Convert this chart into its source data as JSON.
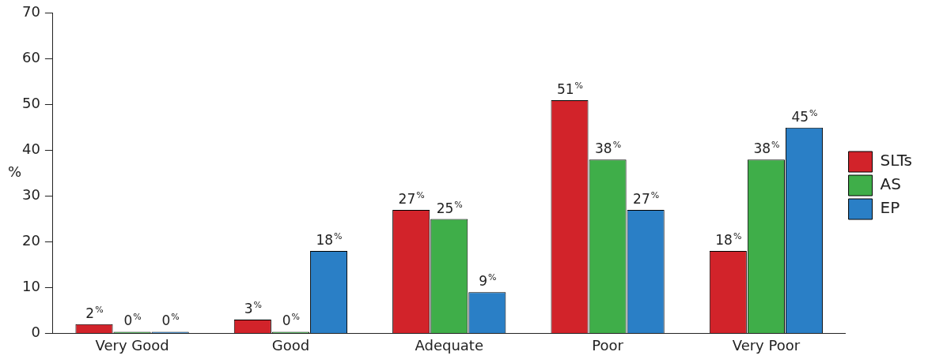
{
  "chart_data": {
    "type": "bar",
    "ylabel": "%",
    "categories": [
      "Very Good",
      "Good",
      "Adequate",
      "Poor",
      "Very Poor"
    ],
    "series": [
      {
        "name": "SLTs",
        "color": "#d2232a",
        "values": [
          2,
          3,
          27,
          51,
          18
        ],
        "value_labels": [
          "2$^{%}$",
          "3$^{%}$",
          "27$^{%}$",
          "51$^{%}$",
          "18$^{%}$"
        ]
      },
      {
        "name": "AS",
        "color": "#3fae49",
        "values": [
          0,
          0,
          25,
          38,
          38
        ],
        "value_labels": [
          "0$^{%}$",
          "0$^{%}$",
          "25$^{%}$",
          "38$^{%}$",
          "38$^{%}$"
        ]
      },
      {
        "name": "EP",
        "color": "#2a7fc6",
        "values": [
          0,
          18,
          9,
          27,
          45
        ],
        "value_labels": [
          "0$^{%}$",
          "18$^{%}$",
          "9$^{%}$",
          "27$^{%}$",
          "45$^{%}$"
        ]
      }
    ],
    "ylim": [
      0,
      70
    ],
    "yticks": [
      0,
      10,
      20,
      30,
      40,
      50,
      60,
      70
    ],
    "grid": false,
    "legend": "right"
  }
}
